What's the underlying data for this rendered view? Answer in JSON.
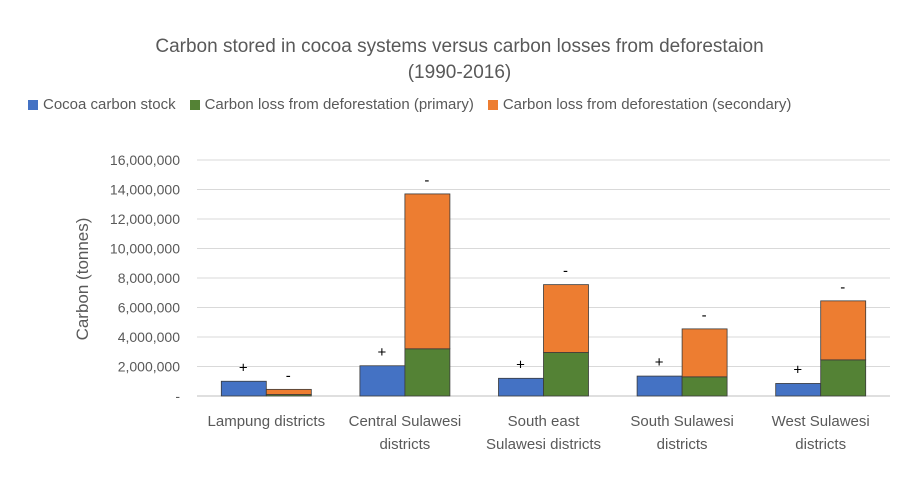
{
  "chart_data": {
    "type": "bar",
    "stacked_groups": true,
    "title_lines": [
      "Carbon stored in cocoa systems versus carbon losses from deforestaion",
      "(1990-2016)"
    ],
    "ylabel": "Carbon (tonnes)",
    "xlabel": "",
    "ylim": [
      0,
      16000000
    ],
    "y_ticks": [
      0,
      2000000,
      4000000,
      6000000,
      8000000,
      10000000,
      12000000,
      14000000,
      16000000
    ],
    "y_tick_labels": [
      "-",
      "2,000,000",
      "4,000,000",
      "6,000,000",
      "8,000,000",
      "10,000,000",
      "12,000,000",
      "14,000,000",
      "16,000,000"
    ],
    "grid": true,
    "legend_position": "top",
    "categories": [
      [
        "Lampung districts"
      ],
      [
        "Central Sulawesi",
        "districts"
      ],
      [
        "South east",
        "Sulawesi districts"
      ],
      [
        "South Sulawesi",
        "districts"
      ],
      [
        "West Sulawesi",
        "districts"
      ]
    ],
    "series": [
      {
        "name": "Cocoa carbon stock",
        "color": "#4472C4",
        "stack": "left",
        "values": [
          1000000,
          2050000,
          1200000,
          1350000,
          850000
        ]
      },
      {
        "name": "Carbon loss from deforestation (primary)",
        "color": "#548235",
        "stack": "right",
        "values": [
          100000,
          3200000,
          2950000,
          1300000,
          2450000
        ]
      },
      {
        "name": "Carbon loss from deforestation (secondary)",
        "color": "#ED7D31",
        "stack": "right",
        "values": [
          350000,
          10500000,
          4600000,
          3250000,
          4000000
        ]
      }
    ],
    "annotations": {
      "left": [
        "+",
        "+",
        "+",
        "+",
        "+"
      ],
      "right": [
        "-",
        "-",
        "-",
        "-",
        "-"
      ]
    }
  }
}
